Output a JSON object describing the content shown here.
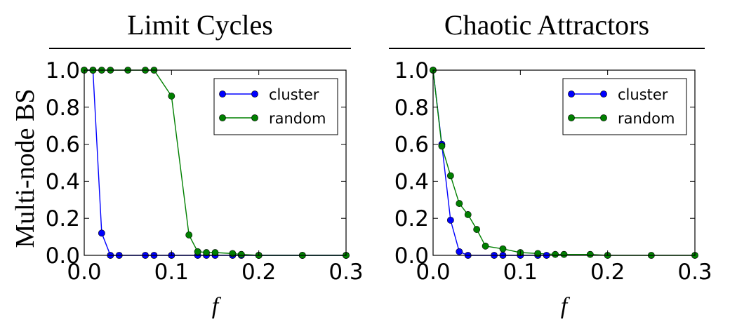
{
  "ylabel_shared": "Multi-node  BS",
  "chart_data": [
    {
      "type": "line",
      "title": "Limit Cycles",
      "xlabel": "f",
      "ylabel": "Multi-node  BS",
      "xlim": [
        0.0,
        0.3
      ],
      "ylim": [
        0.0,
        1.0
      ],
      "xticks": [
        "0.0",
        "0.1",
        "0.2",
        "0.3"
      ],
      "yticks": [
        "0.0",
        "0.2",
        "0.4",
        "0.6",
        "0.8",
        "1.0"
      ],
      "legend_position": "top-right",
      "series": [
        {
          "name": "cluster",
          "color": "#0000ff",
          "x": [
            0.0,
            0.01,
            0.02,
            0.03,
            0.04,
            0.07,
            0.08,
            0.1,
            0.13,
            0.14,
            0.15,
            0.17,
            0.18,
            0.2,
            0.25,
            0.3
          ],
          "y": [
            1.0,
            1.0,
            0.12,
            0.0,
            0.0,
            0.0,
            0.0,
            0.0,
            0.0,
            0.0,
            0.0,
            0.0,
            0.0,
            0.0,
            0.0,
            0.0
          ]
        },
        {
          "name": "random",
          "color": "#008000",
          "x": [
            0.0,
            0.01,
            0.02,
            0.03,
            0.05,
            0.07,
            0.08,
            0.1,
            0.12,
            0.13,
            0.14,
            0.15,
            0.17,
            0.18,
            0.2,
            0.25,
            0.3
          ],
          "y": [
            1.0,
            1.0,
            1.0,
            1.0,
            1.0,
            1.0,
            1.0,
            0.86,
            0.11,
            0.02,
            0.015,
            0.015,
            0.01,
            0.005,
            0.0,
            0.0,
            0.0
          ]
        }
      ]
    },
    {
      "type": "line",
      "title": "Chaotic Attractors",
      "xlabel": "f",
      "ylabel": "",
      "xlim": [
        0.0,
        0.3
      ],
      "ylim": [
        0.0,
        1.0
      ],
      "xticks": [
        "0.0",
        "0.1",
        "0.2",
        "0.3"
      ],
      "yticks": [
        "0.0",
        "0.2",
        "0.4",
        "0.6",
        "0.8",
        "1.0"
      ],
      "legend_position": "top-right",
      "series": [
        {
          "name": "cluster",
          "color": "#0000ff",
          "x": [
            0.0,
            0.01,
            0.02,
            0.03,
            0.04,
            0.07,
            0.08,
            0.1,
            0.12,
            0.13
          ],
          "y": [
            1.0,
            0.6,
            0.19,
            0.02,
            0.0,
            0.0,
            0.0,
            0.0,
            0.0,
            0.0
          ]
        },
        {
          "name": "random",
          "color": "#008000",
          "x": [
            0.0,
            0.01,
            0.02,
            0.03,
            0.04,
            0.05,
            0.06,
            0.08,
            0.1,
            0.12,
            0.14,
            0.15,
            0.18,
            0.2,
            0.25,
            0.3
          ],
          "y": [
            1.0,
            0.59,
            0.43,
            0.28,
            0.22,
            0.14,
            0.05,
            0.035,
            0.015,
            0.01,
            0.005,
            0.005,
            0.005,
            0.0,
            0.0,
            0.0
          ]
        }
      ]
    }
  ]
}
